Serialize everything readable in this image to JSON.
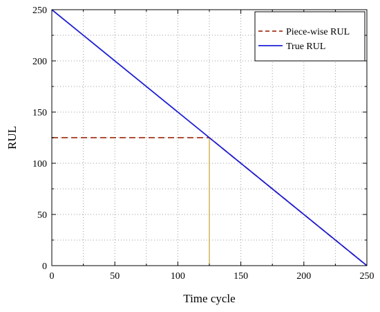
{
  "chart_data": {
    "type": "line",
    "xlabel": "Time cycle",
    "ylabel": "RUL",
    "xlim": [
      0,
      250
    ],
    "ylim": [
      0,
      250
    ],
    "x_ticks": [
      0,
      50,
      100,
      150,
      200,
      250
    ],
    "y_ticks": [
      0,
      50,
      100,
      150,
      200,
      250
    ],
    "x_minor_step": 25,
    "y_minor_step": 25,
    "grid": "dotted",
    "legend_position": "top-right",
    "series": [
      {
        "name": "Piece-wise RUL",
        "style": "dashed",
        "color": "#a0351a",
        "x": [
          0,
          125,
          250
        ],
        "y": [
          125,
          125,
          0
        ]
      },
      {
        "name": "True RUL",
        "style": "solid",
        "color": "#1f1fd6",
        "x": [
          0,
          250
        ],
        "y": [
          250,
          0
        ]
      }
    ],
    "annotations": [
      {
        "type": "vertical-line",
        "color": "#c9a227",
        "x": 125,
        "y_from": 0,
        "y_to": 125
      }
    ]
  }
}
